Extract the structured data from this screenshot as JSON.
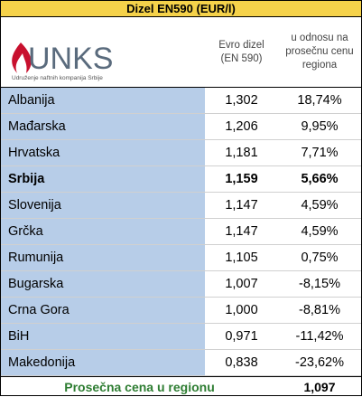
{
  "title": "Dizel EN590 (EUR/l)",
  "logo": {
    "name": "UNKS",
    "subtitle": "Udruženje naftnih kompanija Srbije"
  },
  "table": {
    "headers": [
      [
        "Evro dizel",
        "(EN 590)"
      ],
      [
        "u odnosu na",
        "prosečnu cenu",
        "regiona"
      ]
    ],
    "highlighted_row": 3,
    "rows": [
      [
        "Albanija",
        "1,302",
        "18,74%"
      ],
      [
        "Mađarska",
        "1,206",
        "9,95%"
      ],
      [
        "Hrvatska",
        "1,181",
        "7,71%"
      ],
      [
        "Srbija",
        "1,159",
        "5,66%"
      ],
      [
        "Slovenija",
        "1,147",
        "4,59%"
      ],
      [
        "Grčka",
        "1,147",
        "4,59%"
      ],
      [
        "Rumunija",
        "1,105",
        "0,75%"
      ],
      [
        "Bugarska",
        "1,007",
        "-8,15%"
      ],
      [
        "Crna Gora",
        "1,000",
        "-8,81%"
      ],
      [
        "BiH",
        "0,971",
        "-11,42%"
      ],
      [
        "Makedonija",
        "0,838",
        "-23,62%"
      ]
    ],
    "footer": [
      "Prosečna cena u regionu",
      "1,097"
    ]
  }
}
